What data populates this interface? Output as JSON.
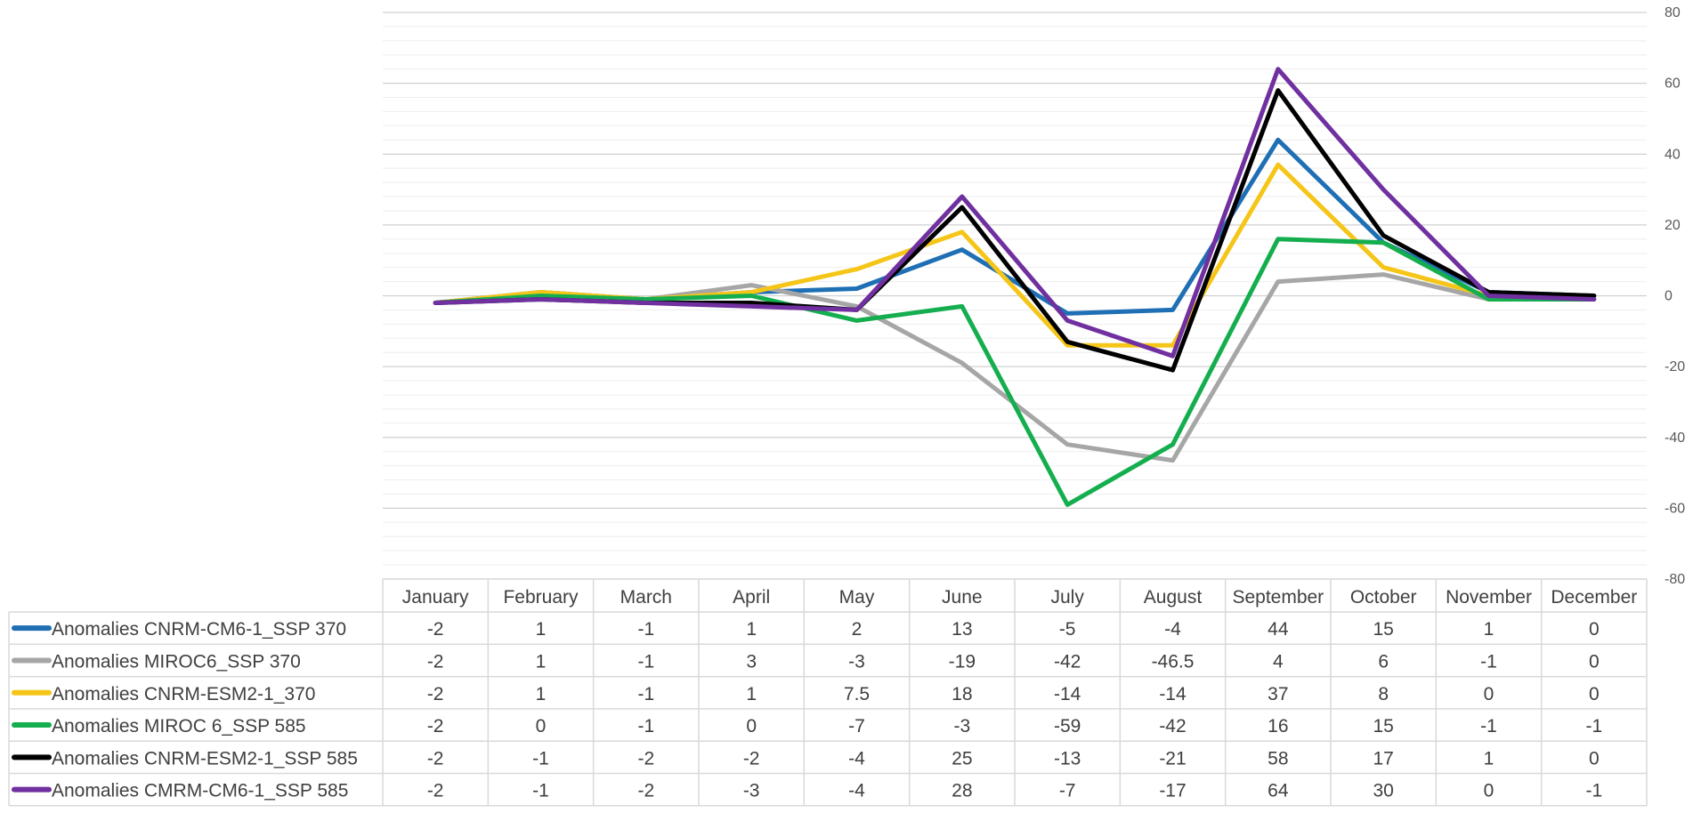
{
  "chart_data": {
    "type": "line",
    "categories": [
      "January",
      "February",
      "March",
      "April",
      "May",
      "June",
      "July",
      "August",
      "September",
      "October",
      "November",
      "December"
    ],
    "ylim": [
      -80,
      80
    ],
    "yticks": [
      "80",
      "60",
      "40",
      "20",
      "0",
      "-20",
      "-40",
      "-60",
      "-80"
    ],
    "grid": true,
    "legend": "data-table-left",
    "series": [
      {
        "name": "Anomalies CNRM-CM6-1_SSP 370",
        "color": "#1F6FB5",
        "values": [
          -2,
          1,
          -1,
          1,
          2,
          13,
          -5,
          -4,
          44,
          15,
          1,
          0
        ],
        "labels": [
          "-2",
          "1",
          "-1",
          "1",
          "2",
          "13",
          "-5",
          "-4",
          "44",
          "15",
          "1",
          "0"
        ]
      },
      {
        "name": "Anomalies MIROC6_SSP 370",
        "color": "#A6A6A6",
        "values": [
          -2,
          1,
          -1,
          3,
          -3,
          -19,
          -42,
          -46.5,
          4,
          6,
          -1,
          0
        ],
        "labels": [
          "-2",
          "1",
          "-1",
          "3",
          "-3",
          "-19",
          "-42",
          "-46.5",
          "4",
          "6",
          "-1",
          "0"
        ]
      },
      {
        "name": "Anomalies CNRM-ESM2-1_370",
        "color": "#F5C518",
        "values": [
          -2,
          1,
          -1,
          1,
          7.5,
          18,
          -14,
          -14,
          37,
          8,
          0,
          0
        ],
        "labels": [
          "-2",
          "1",
          "-1",
          "1",
          "7.5",
          "18",
          "-14",
          "-14",
          "37",
          "8",
          "0",
          "0"
        ]
      },
      {
        "name": "Anomalies MIROC 6_SSP 585",
        "color": "#14AE4F",
        "values": [
          -2,
          0,
          -1,
          0,
          -7,
          -3,
          -59,
          -42,
          16,
          15,
          -1,
          -1
        ],
        "labels": [
          "-2",
          "0",
          "-1",
          "0",
          "-7",
          "-3",
          "-59",
          "-42",
          "16",
          "15",
          "-1",
          "-1"
        ]
      },
      {
        "name": "Anomalies CNRM-ESM2-1_SSP 585",
        "color": "#000000",
        "values": [
          -2,
          -1,
          -2,
          -2,
          -4,
          25,
          -13,
          -21,
          58,
          17,
          1,
          0
        ],
        "labels": [
          "-2",
          "-1",
          "-2",
          "-2",
          "-4",
          "25",
          "-13",
          "-21",
          "58",
          "17",
          "1",
          "0"
        ]
      },
      {
        "name": "Anomalies CMRM-CM6-1_SSP 585",
        "color": "#7030A0",
        "values": [
          -2,
          -1,
          -2,
          -3,
          -4,
          28,
          -7,
          -17,
          64,
          30,
          0,
          -1
        ],
        "labels": [
          "-2",
          "-1",
          "-2",
          "-3",
          "-4",
          "28",
          "-7",
          "-17",
          "64",
          "30",
          "0",
          "-1"
        ]
      }
    ]
  }
}
